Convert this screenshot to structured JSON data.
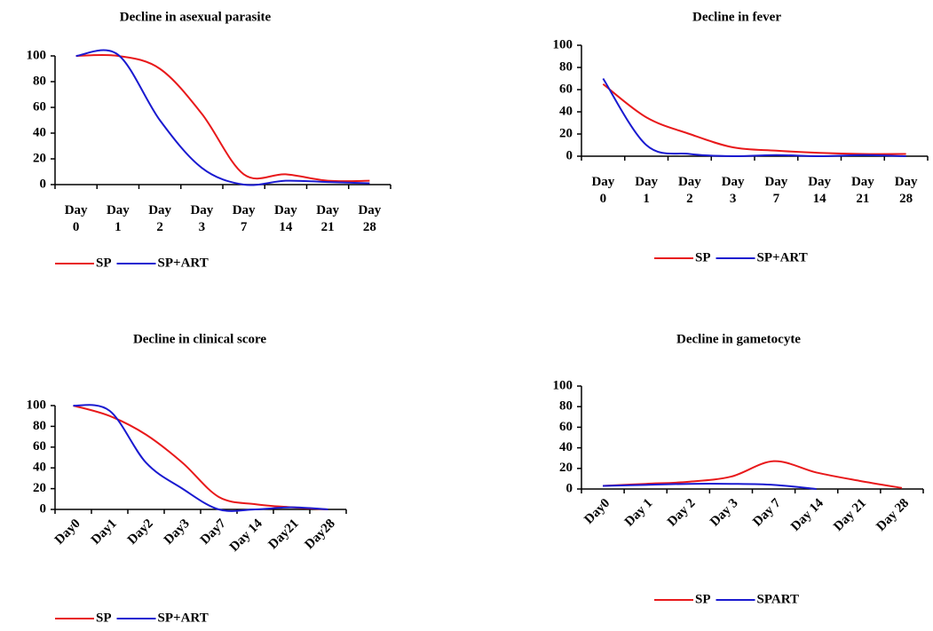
{
  "chart_data": [
    {
      "type": "line",
      "title": "Decline in asexual parasite",
      "categories": [
        "Day 0",
        "Day 1",
        "Day 2",
        "Day 3",
        "Day 7",
        "Day 14",
        "Day 21",
        "Day 28"
      ],
      "series": [
        {
          "name": "SP",
          "color": "#e8191b",
          "values": [
            100,
            100,
            90,
            55,
            8,
            8,
            3,
            3
          ]
        },
        {
          "name": "SP+ART",
          "color": "#1a1ad0",
          "values": [
            100,
            101,
            50,
            13,
            0,
            3,
            2,
            1
          ]
        }
      ],
      "ylim": [
        0,
        100
      ],
      "yticks": [
        0,
        20,
        40,
        60,
        80,
        100
      ],
      "grid": false
    },
    {
      "type": "line",
      "title": "Decline in fever",
      "categories": [
        "Day 0",
        "Day 1",
        "Day 2",
        "Day 3",
        "Day 7",
        "Day 14",
        "Day 21",
        "Day 28"
      ],
      "series": [
        {
          "name": "SP",
          "color": "#e8191b",
          "values": [
            65,
            35,
            20,
            8,
            5,
            3,
            2,
            2
          ]
        },
        {
          "name": "SP+ART",
          "color": "#1a1ad0",
          "values": [
            70,
            10,
            2,
            0,
            1,
            0,
            1,
            0
          ]
        }
      ],
      "ylim": [
        0,
        100
      ],
      "yticks": [
        0,
        20,
        40,
        60,
        80,
        100
      ],
      "grid": false
    },
    {
      "type": "line",
      "title": "Decline in clinical score",
      "categories": [
        "Day0",
        "Day1",
        "Day2",
        "Day3",
        "Day7",
        "Day 14",
        "Day21",
        "Day28"
      ],
      "series": [
        {
          "name": "SP",
          "color": "#e8191b",
          "values": [
            100,
            90,
            72,
            45,
            12,
            5,
            2,
            0
          ]
        },
        {
          "name": "SP+ART",
          "color": "#1a1ad0",
          "values": [
            100,
            95,
            45,
            20,
            0,
            0,
            2,
            0
          ]
        }
      ],
      "ylim": [
        0,
        100
      ],
      "yticks": [
        0,
        20,
        40,
        60,
        80,
        100
      ],
      "grid": false
    },
    {
      "type": "line",
      "title": "Decline in gametocyte",
      "categories": [
        "Day0",
        "Day 1",
        "Day 2",
        "Day 3",
        "Day 7",
        "Day 14",
        "Day 21",
        "Day 28"
      ],
      "series": [
        {
          "name": "SP",
          "color": "#e8191b",
          "values": [
            3,
            5,
            7,
            12,
            27,
            16,
            8,
            1
          ]
        },
        {
          "name": "SPART",
          "color": "#1a1ad0",
          "values": [
            3,
            4,
            5,
            5,
            4,
            0,
            null,
            null
          ]
        }
      ],
      "ylim": [
        0,
        100
      ],
      "yticks": [
        0,
        20,
        40,
        60,
        80,
        100
      ],
      "grid": false
    }
  ]
}
